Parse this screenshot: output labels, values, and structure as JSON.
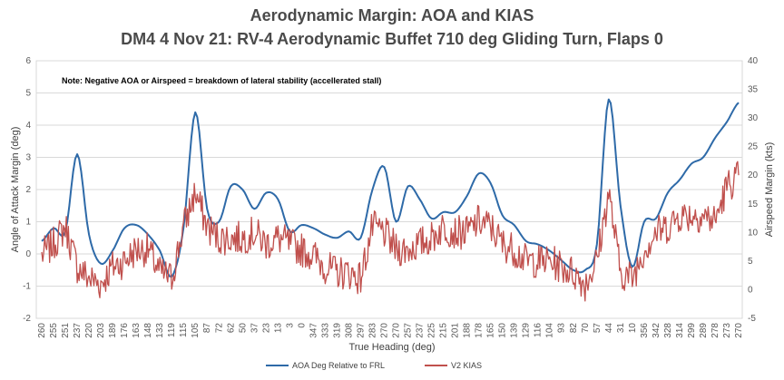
{
  "chart_data": {
    "type": "line",
    "title": "Aerodynamic Margin:  AOA and KIAS",
    "subtitle": "DM4 4 Nov 21:  RV-4 Aerodynamic Buffet 710 deg Gliding Turn, Flaps 0",
    "annotation": "Note:  Negative AOA or Airspeed = breakdown of lateral stability (accellerated stall)",
    "xlabel": "True Heading (deg)",
    "ylabel": "Angle of Attack Margin (deg)",
    "y2label": "Airspeed Margin (kts)",
    "ylim": [
      -2,
      6
    ],
    "y2lim": [
      -5,
      40
    ],
    "yticks": [
      "6",
      "5",
      "4",
      "3",
      "2",
      "1",
      "0",
      "-1",
      "-2"
    ],
    "y2ticks": [
      "40",
      "35",
      "30",
      "25",
      "20",
      "15",
      "10",
      "5",
      "0",
      "-5"
    ],
    "categories": [
      "260",
      "255",
      "251",
      "237",
      "220",
      "203",
      "189",
      "176",
      "163",
      "148",
      "133",
      "119",
      "115",
      "105",
      "87",
      "72",
      "62",
      "50",
      "37",
      "23",
      "13",
      "3",
      "0",
      "347",
      "333",
      "319",
      "308",
      "297",
      "283",
      "270",
      "270",
      "257",
      "237",
      "225",
      "215",
      "201",
      "188",
      "178",
      "165",
      "150",
      "139",
      "129",
      "116",
      "104",
      "93",
      "82",
      "70",
      "57",
      "44",
      "31",
      "10",
      "356",
      "342",
      "328",
      "314",
      "299",
      "289",
      "278",
      "273",
      "270"
    ],
    "legend_position": "bottom",
    "series": [
      {
        "name": "AOA Deg Relative to FRL",
        "axis": "left",
        "color": "#2e6aa8",
        "values": [
          0.4,
          0.8,
          0.7,
          3.1,
          0.6,
          -0.3,
          0.1,
          0.8,
          0.9,
          0.6,
          0.1,
          -0.7,
          0.8,
          4.4,
          1.4,
          1.0,
          2.1,
          2.0,
          1.4,
          1.9,
          1.7,
          0.7,
          0.9,
          0.8,
          0.6,
          0.5,
          0.7,
          0.5,
          2.0,
          2.7,
          1.0,
          2.1,
          1.7,
          1.1,
          1.3,
          1.3,
          1.8,
          2.5,
          2.2,
          1.2,
          0.9,
          0.4,
          0.3,
          0.1,
          -0.2,
          -0.5,
          -0.5,
          0.3,
          4.8,
          1.5,
          -0.4,
          1.0,
          1.1,
          1.9,
          2.3,
          2.8,
          3.0,
          3.6,
          4.1,
          4.7
        ]
      },
      {
        "name": "V2 KIAS",
        "axis": "right",
        "color": "#c0504d",
        "values": [
          6,
          8,
          11,
          4,
          2,
          1,
          4,
          5,
          7,
          7,
          3,
          2,
          11,
          17,
          11,
          9,
          9,
          9,
          10,
          8,
          9,
          8,
          7,
          6,
          4,
          3,
          3,
          2,
          11,
          10,
          7,
          7,
          8,
          9,
          11,
          10,
          10,
          12,
          11,
          8,
          7,
          5,
          5,
          5,
          4,
          3,
          1,
          5,
          17,
          3,
          2,
          7,
          10,
          11,
          13,
          13,
          13,
          12,
          18,
          20
        ]
      }
    ]
  }
}
